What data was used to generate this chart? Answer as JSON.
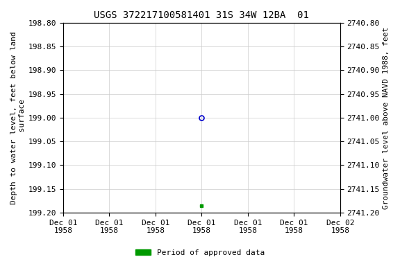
{
  "title": "USGS 372217100581401 31S 34W 12BA  01",
  "ylabel_left": "Depth to water level, feet below land\n surface",
  "ylabel_right": "Groundwater level above NAVD 1988, feet",
  "ylim_left": [
    198.8,
    199.2
  ],
  "ylim_right": [
    2740.8,
    2741.2
  ],
  "yticks_left": [
    198.8,
    198.85,
    198.9,
    198.95,
    199.0,
    199.05,
    199.1,
    199.15,
    199.2
  ],
  "yticks_right": [
    2740.8,
    2740.85,
    2740.9,
    2740.95,
    2741.0,
    2741.05,
    2741.1,
    2741.15,
    2741.2
  ],
  "data_point_y": 199.0,
  "data_point_color": "#0000cc",
  "data_point2_y": 199.185,
  "data_point2_color": "#009900",
  "grid_color": "#cccccc",
  "background_color": "#ffffff",
  "title_fontsize": 10,
  "axis_label_fontsize": 8,
  "tick_fontsize": 8,
  "legend_label": "Period of approved data",
  "legend_color": "#009900",
  "font_family": "DejaVu Sans Mono",
  "x_tick_hours": [
    0,
    3,
    6,
    9,
    12,
    15,
    18
  ],
  "x_tick_labels": [
    "Dec 01\n1958",
    "Dec 01\n1958",
    "Dec 01\n1958",
    "Dec 01\n1958",
    "Dec 01\n1958",
    "Dec 01\n1958",
    "Dec 02\n1958"
  ],
  "data_point_hour": 9,
  "data_point2_hour": 9
}
